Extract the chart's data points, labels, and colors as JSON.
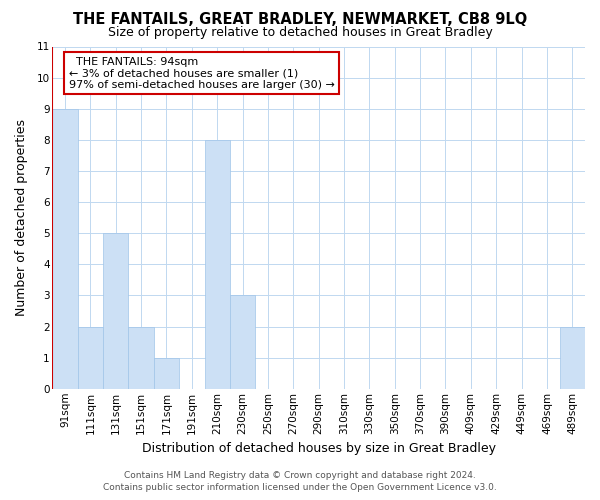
{
  "title": "THE FANTAILS, GREAT BRADLEY, NEWMARKET, CB8 9LQ",
  "subtitle": "Size of property relative to detached houses in Great Bradley",
  "xlabel": "Distribution of detached houses by size in Great Bradley",
  "ylabel": "Number of detached properties",
  "bar_color": "#cce0f5",
  "bar_edge_color": "#a0c4e8",
  "marker_color": "#cc0000",
  "categories": [
    "91sqm",
    "111sqm",
    "131sqm",
    "151sqm",
    "171sqm",
    "191sqm",
    "210sqm",
    "230sqm",
    "250sqm",
    "270sqm",
    "290sqm",
    "310sqm",
    "330sqm",
    "350sqm",
    "370sqm",
    "390sqm",
    "409sqm",
    "429sqm",
    "449sqm",
    "469sqm",
    "489sqm"
  ],
  "values": [
    9,
    2,
    5,
    2,
    1,
    0,
    8,
    3,
    0,
    0,
    0,
    0,
    0,
    0,
    0,
    0,
    0,
    0,
    0,
    0,
    2
  ],
  "ylim": [
    0,
    11
  ],
  "yticks": [
    0,
    1,
    2,
    3,
    4,
    5,
    6,
    7,
    8,
    9,
    10,
    11
  ],
  "property_size": "94sqm",
  "annotation_title": "THE FANTAILS: 94sqm",
  "annotation_line1": "← 3% of detached houses are smaller (1)",
  "annotation_line2": "97% of semi-detached houses are larger (30) →",
  "annotation_box_color": "#ffffff",
  "annotation_box_edge_color": "#cc0000",
  "footer_line1": "Contains HM Land Registry data © Crown copyright and database right 2024.",
  "footer_line2": "Contains public sector information licensed under the Open Government Licence v3.0.",
  "bg_color": "#ffffff",
  "grid_color": "#c0d8f0",
  "title_fontsize": 10.5,
  "subtitle_fontsize": 9,
  "ylabel_fontsize": 9,
  "xlabel_fontsize": 9,
  "tick_fontsize": 7.5,
  "footer_fontsize": 6.5
}
